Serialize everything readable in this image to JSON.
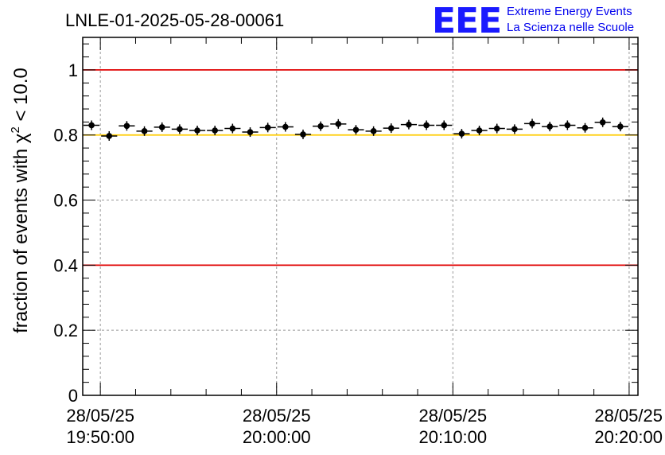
{
  "header": {
    "run_title": "LNLE-01-2025-05-28-00061",
    "logo_letters": "EEE",
    "logo_line1": "Extreme Energy Events",
    "logo_line2": "La Scienza nelle Scuole"
  },
  "colors": {
    "limit_line": "#e00000",
    "reference_line": "#ffcc00",
    "marker": "#000000",
    "grid": "#999999",
    "logo": "#1a1aff"
  },
  "chart_data": {
    "type": "scatter",
    "title": "LNLE-01-2025-05-28-00061",
    "xlabel": "",
    "ylabel_prefix": "fraction of events with ",
    "ylabel_symbol": "χ",
    "ylabel_exponent": "2",
    "ylabel_suffix": " < 10.0",
    "xlim": [
      "2025-05-28 19:49:00",
      "2025-05-28 20:20:30"
    ],
    "ylim": [
      0,
      1.1
    ],
    "grid": true,
    "y_ticks": [
      {
        "value": 0,
        "label": "0"
      },
      {
        "value": 0.2,
        "label": "0.2"
      },
      {
        "value": 0.4,
        "label": "0.4"
      },
      {
        "value": 0.6,
        "label": "0.6"
      },
      {
        "value": 0.8,
        "label": "0.8"
      },
      {
        "value": 1.0,
        "label": "1"
      }
    ],
    "x_ticks": [
      {
        "value": "2025-05-28 19:50:00",
        "date": "28/05/25",
        "time": "19:50:00"
      },
      {
        "value": "2025-05-28 20:00:00",
        "date": "28/05/25",
        "time": "20:00:00"
      },
      {
        "value": "2025-05-28 20:10:00",
        "date": "28/05/25",
        "time": "20:10:00"
      },
      {
        "value": "2025-05-28 20:20:00",
        "date": "28/05/25",
        "time": "20:20:00"
      }
    ],
    "horizontal_lines": [
      {
        "value": 1.0,
        "color": "#e00000"
      },
      {
        "value": 0.8,
        "color": "#ffcc00"
      },
      {
        "value": 0.4,
        "color": "#e00000"
      }
    ],
    "x_halfwidth_minutes": 0.5,
    "points": [
      {
        "x": "2025-05-28 19:49:30",
        "y": 0.83
      },
      {
        "x": "2025-05-28 19:50:30",
        "y": 0.797
      },
      {
        "x": "2025-05-28 19:51:30",
        "y": 0.828
      },
      {
        "x": "2025-05-28 19:52:30",
        "y": 0.812
      },
      {
        "x": "2025-05-28 19:53:30",
        "y": 0.824
      },
      {
        "x": "2025-05-28 19:54:30",
        "y": 0.818
      },
      {
        "x": "2025-05-28 19:55:30",
        "y": 0.814
      },
      {
        "x": "2025-05-28 19:56:30",
        "y": 0.814
      },
      {
        "x": "2025-05-28 19:57:30",
        "y": 0.82
      },
      {
        "x": "2025-05-28 19:58:30",
        "y": 0.809
      },
      {
        "x": "2025-05-28 19:59:30",
        "y": 0.823
      },
      {
        "x": "2025-05-28 20:00:30",
        "y": 0.825
      },
      {
        "x": "2025-05-28 20:01:30",
        "y": 0.802
      },
      {
        "x": "2025-05-28 20:02:30",
        "y": 0.827
      },
      {
        "x": "2025-05-28 20:03:30",
        "y": 0.834
      },
      {
        "x": "2025-05-28 20:04:30",
        "y": 0.816
      },
      {
        "x": "2025-05-28 20:05:30",
        "y": 0.812
      },
      {
        "x": "2025-05-28 20:06:30",
        "y": 0.821
      },
      {
        "x": "2025-05-28 20:07:30",
        "y": 0.832
      },
      {
        "x": "2025-05-28 20:08:30",
        "y": 0.83
      },
      {
        "x": "2025-05-28 20:09:30",
        "y": 0.83
      },
      {
        "x": "2025-05-28 20:10:30",
        "y": 0.804
      },
      {
        "x": "2025-05-28 20:11:30",
        "y": 0.814
      },
      {
        "x": "2025-05-28 20:12:30",
        "y": 0.82
      },
      {
        "x": "2025-05-28 20:13:30",
        "y": 0.818
      },
      {
        "x": "2025-05-28 20:14:30",
        "y": 0.835
      },
      {
        "x": "2025-05-28 20:15:30",
        "y": 0.826
      },
      {
        "x": "2025-05-28 20:16:30",
        "y": 0.83
      },
      {
        "x": "2025-05-28 20:17:30",
        "y": 0.822
      },
      {
        "x": "2025-05-28 20:18:30",
        "y": 0.839
      },
      {
        "x": "2025-05-28 20:19:30",
        "y": 0.826
      }
    ]
  }
}
